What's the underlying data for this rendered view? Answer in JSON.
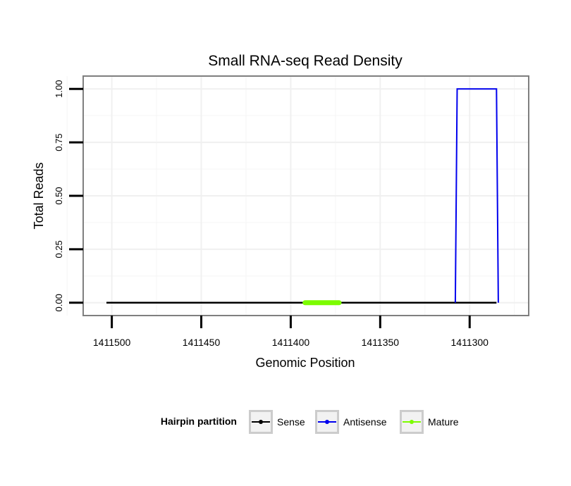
{
  "chart_data": {
    "type": "line",
    "title": "Small RNA-seq Read Density",
    "xlabel": "Genomic Position",
    "ylabel": "Total Reads",
    "xlim_reversed": [
      1411516,
      1411267
    ],
    "ylim": [
      -0.06,
      1.06
    ],
    "x_ticks": [
      1411500,
      1411450,
      1411400,
      1411350,
      1411300
    ],
    "x_tick_labels": [
      "1411500",
      "1411450",
      "1411400",
      "1411350",
      "1411300"
    ],
    "y_ticks": [
      0,
      0.25,
      0.5,
      0.75,
      1
    ],
    "y_tick_labels": [
      "0.00",
      "0.25",
      "0.50",
      "0.75",
      "1.00"
    ],
    "grid": true,
    "legend_position": "bottom",
    "legend_title": "Hairpin partition",
    "series": [
      {
        "name": "Sense",
        "color": "#000000",
        "points": [
          [
            1411503,
            0
          ],
          [
            1411285,
            0
          ]
        ]
      },
      {
        "name": "Antisense",
        "color": "#0000ee",
        "points": [
          [
            1411308,
            0
          ],
          [
            1411307,
            1
          ],
          [
            1411285,
            1
          ],
          [
            1411284,
            0
          ]
        ]
      },
      {
        "name": "Mature",
        "color": "#7cfc00",
        "points": [
          [
            1411392,
            0
          ],
          [
            1411373,
            0
          ]
        ]
      }
    ]
  }
}
